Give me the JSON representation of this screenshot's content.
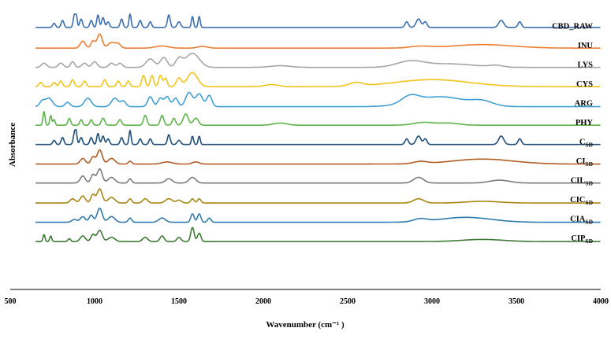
{
  "chart_data": {
    "type": "line",
    "xlabel": "Wavenumber (cm⁻¹ )",
    "ylabel": "Absorbance",
    "xlim": [
      500,
      4000
    ],
    "xticks": [
      "500",
      "1000",
      "1500",
      "2000",
      "2500",
      "3000",
      "3500",
      "4000"
    ],
    "grid": false,
    "series_order": "stacked, top to bottom",
    "series": [
      {
        "name": "CBD_RAW",
        "label_main": "CBD_RAW",
        "label_sub": "",
        "color": "#3a6fb0",
        "x_range": [
          650,
          4000
        ],
        "baseline": 0.2,
        "peaks": [
          [
            760,
            0.3,
            8
          ],
          [
            810,
            0.5,
            8
          ],
          [
            880,
            0.8,
            7
          ],
          [
            890,
            0.9,
            6
          ],
          [
            920,
            0.6,
            8
          ],
          [
            980,
            0.5,
            8
          ],
          [
            1020,
            0.9,
            7
          ],
          [
            1050,
            0.7,
            8
          ],
          [
            1080,
            0.4,
            8
          ],
          [
            1160,
            0.6,
            8
          ],
          [
            1210,
            1.0,
            6
          ],
          [
            1270,
            0.5,
            8
          ],
          [
            1330,
            0.4,
            8
          ],
          [
            1440,
            0.9,
            8
          ],
          [
            1500,
            0.4,
            10
          ],
          [
            1580,
            0.8,
            6
          ],
          [
            1620,
            0.8,
            6
          ],
          [
            2850,
            0.4,
            10
          ],
          [
            2920,
            0.6,
            14
          ],
          [
            2960,
            0.4,
            10
          ],
          [
            3410,
            0.5,
            15
          ],
          [
            3520,
            0.4,
            10
          ]
        ]
      },
      {
        "name": "INU",
        "label_main": "INU",
        "label_sub": "",
        "color": "#ed7d31",
        "x_range": [
          650,
          4000
        ],
        "baseline": 0.1,
        "peaks": [
          [
            930,
            0.5,
            15
          ],
          [
            990,
            0.5,
            12
          ],
          [
            1030,
            1.0,
            15
          ],
          [
            1100,
            0.4,
            20
          ],
          [
            1140,
            0.3,
            15
          ],
          [
            1400,
            0.15,
            40
          ],
          [
            1640,
            0.12,
            30
          ],
          [
            2930,
            0.12,
            60
          ],
          [
            3300,
            0.25,
            180
          ]
        ]
      },
      {
        "name": "LYS",
        "label_main": "LYS",
        "label_sub": "",
        "color": "#a5a5a5",
        "x_range": [
          650,
          4000
        ],
        "baseline": 0.1,
        "peaks": [
          [
            700,
            0.3,
            15
          ],
          [
            800,
            0.3,
            15
          ],
          [
            870,
            0.4,
            12
          ],
          [
            940,
            0.3,
            15
          ],
          [
            1000,
            0.4,
            15
          ],
          [
            1100,
            0.3,
            15
          ],
          [
            1150,
            0.3,
            15
          ],
          [
            1330,
            0.6,
            25
          ],
          [
            1410,
            0.7,
            20
          ],
          [
            1500,
            0.6,
            20
          ],
          [
            1580,
            1.0,
            40
          ],
          [
            2100,
            0.12,
            60
          ],
          [
            2870,
            0.4,
            80
          ],
          [
            3100,
            0.25,
            150
          ],
          [
            3380,
            0.12,
            40
          ]
        ]
      },
      {
        "name": "CYS",
        "label_main": "CYS",
        "label_sub": "",
        "color": "#f2c318",
        "x_range": [
          650,
          4000
        ],
        "baseline": 0.1,
        "peaks": [
          [
            680,
            0.3,
            10
          ],
          [
            760,
            0.3,
            10
          ],
          [
            800,
            0.4,
            10
          ],
          [
            870,
            0.5,
            10
          ],
          [
            940,
            0.4,
            10
          ],
          [
            1060,
            0.5,
            10
          ],
          [
            1140,
            0.4,
            10
          ],
          [
            1200,
            0.4,
            10
          ],
          [
            1290,
            0.8,
            10
          ],
          [
            1340,
            0.8,
            10
          ],
          [
            1390,
            0.8,
            10
          ],
          [
            1420,
            0.6,
            10
          ],
          [
            1500,
            0.6,
            15
          ],
          [
            1580,
            1.0,
            30
          ],
          [
            2050,
            0.15,
            40
          ],
          [
            2550,
            0.25,
            40
          ],
          [
            3000,
            0.5,
            220
          ]
        ]
      },
      {
        "name": "ARG",
        "label_main": "ARG",
        "label_sub": "",
        "color": "#41a0d3",
        "x_range": [
          650,
          4000
        ],
        "baseline": 0.05,
        "peaks": [
          [
            690,
            0.4,
            15
          ],
          [
            730,
            0.6,
            20
          ],
          [
            840,
            0.3,
            15
          ],
          [
            960,
            0.6,
            20
          ],
          [
            1120,
            0.6,
            20
          ],
          [
            1170,
            0.4,
            15
          ],
          [
            1330,
            0.7,
            15
          ],
          [
            1390,
            0.6,
            15
          ],
          [
            1430,
            0.7,
            15
          ],
          [
            1480,
            0.6,
            15
          ],
          [
            1560,
            1.0,
            20
          ],
          [
            1620,
            0.9,
            20
          ],
          [
            1680,
            0.8,
            15
          ],
          [
            2870,
            0.5,
            50
          ],
          [
            3050,
            0.7,
            150
          ],
          [
            3300,
            0.3,
            60
          ]
        ]
      },
      {
        "name": "PHY",
        "label_main": "PHY",
        "label_sub": "",
        "color": "#5db548",
        "x_range": [
          650,
          4000
        ],
        "baseline": 0.1,
        "peaks": [
          [
            700,
            1.0,
            6
          ],
          [
            740,
            0.7,
            6
          ],
          [
            760,
            0.4,
            6
          ],
          [
            850,
            0.5,
            8
          ],
          [
            920,
            0.4,
            8
          ],
          [
            980,
            0.4,
            8
          ],
          [
            1050,
            0.5,
            10
          ],
          [
            1150,
            0.4,
            10
          ],
          [
            1300,
            0.7,
            10
          ],
          [
            1400,
            0.7,
            10
          ],
          [
            1470,
            0.5,
            10
          ],
          [
            1540,
            0.8,
            15
          ],
          [
            1600,
            0.5,
            15
          ],
          [
            2100,
            0.15,
            40
          ],
          [
            2950,
            0.2,
            60
          ],
          [
            3100,
            0.15,
            60
          ]
        ]
      },
      {
        "name": "CSD",
        "label_main": "C",
        "label_sub": "SD",
        "color": "#1f4e79",
        "x_range": [
          650,
          4000
        ],
        "baseline": 0.1,
        "peaks": [
          [
            760,
            0.3,
            8
          ],
          [
            810,
            0.5,
            8
          ],
          [
            880,
            0.7,
            7
          ],
          [
            890,
            0.8,
            6
          ],
          [
            920,
            0.5,
            8
          ],
          [
            980,
            0.5,
            8
          ],
          [
            1020,
            0.8,
            7
          ],
          [
            1050,
            0.6,
            8
          ],
          [
            1080,
            0.4,
            8
          ],
          [
            1160,
            0.5,
            8
          ],
          [
            1210,
            1.0,
            6
          ],
          [
            1270,
            0.4,
            8
          ],
          [
            1330,
            0.4,
            8
          ],
          [
            1440,
            0.7,
            8
          ],
          [
            1500,
            0.3,
            10
          ],
          [
            1580,
            0.6,
            6
          ],
          [
            1620,
            0.6,
            6
          ],
          [
            2850,
            0.4,
            10
          ],
          [
            2920,
            0.6,
            14
          ],
          [
            2960,
            0.4,
            10
          ],
          [
            3410,
            0.6,
            15
          ],
          [
            3520,
            0.4,
            10
          ]
        ]
      },
      {
        "name": "CISD",
        "label_main": "CI",
        "label_sub": "SD",
        "color": "#b05c23",
        "x_range": [
          650,
          4000
        ],
        "baseline": 0.08,
        "peaks": [
          [
            930,
            0.4,
            15
          ],
          [
            990,
            0.5,
            12
          ],
          [
            1030,
            1.0,
            15
          ],
          [
            1100,
            0.4,
            20
          ],
          [
            1210,
            0.2,
            10
          ],
          [
            1430,
            0.15,
            30
          ],
          [
            1600,
            0.15,
            20
          ],
          [
            2930,
            0.15,
            40
          ],
          [
            3300,
            0.35,
            180
          ]
        ]
      },
      {
        "name": "CILSD",
        "label_main": "CIL",
        "label_sub": "SD",
        "color": "#7b7b7b",
        "x_range": [
          650,
          4000
        ],
        "baseline": 0.1,
        "peaks": [
          [
            930,
            0.5,
            15
          ],
          [
            990,
            0.6,
            12
          ],
          [
            1030,
            1.0,
            15
          ],
          [
            1100,
            0.4,
            20
          ],
          [
            1210,
            0.3,
            10
          ],
          [
            1440,
            0.3,
            20
          ],
          [
            1580,
            0.4,
            20
          ],
          [
            2920,
            0.4,
            30
          ],
          [
            3400,
            0.2,
            60
          ]
        ]
      },
      {
        "name": "CICSD",
        "label_main": "CIC",
        "label_sub": "SD",
        "color": "#a98510",
        "x_range": [
          650,
          4000
        ],
        "baseline": 0.05,
        "peaks": [
          [
            870,
            0.3,
            15
          ],
          [
            930,
            0.5,
            15
          ],
          [
            990,
            0.6,
            12
          ],
          [
            1030,
            1.0,
            15
          ],
          [
            1100,
            0.4,
            20
          ],
          [
            1210,
            0.3,
            10
          ],
          [
            1300,
            0.3,
            15
          ],
          [
            1440,
            0.3,
            20
          ],
          [
            1500,
            0.2,
            15
          ],
          [
            1580,
            0.3,
            10
          ],
          [
            1620,
            0.3,
            10
          ],
          [
            2920,
            0.3,
            30
          ],
          [
            3300,
            0.12,
            100
          ]
        ]
      },
      {
        "name": "CIASD",
        "label_main": "CIA",
        "label_sub": "SD",
        "color": "#2f7bab",
        "x_range": [
          650,
          4000
        ],
        "baseline": 0.05,
        "peaks": [
          [
            880,
            0.2,
            15
          ],
          [
            930,
            0.4,
            15
          ],
          [
            980,
            0.5,
            12
          ],
          [
            1030,
            1.0,
            15
          ],
          [
            1100,
            0.4,
            20
          ],
          [
            1210,
            0.3,
            10
          ],
          [
            1400,
            0.3,
            20
          ],
          [
            1580,
            0.6,
            10
          ],
          [
            1620,
            0.6,
            10
          ],
          [
            1680,
            0.3,
            10
          ],
          [
            2930,
            0.2,
            40
          ],
          [
            3200,
            0.35,
            150
          ]
        ]
      },
      {
        "name": "CIPSD",
        "label_main": "CIP",
        "label_sub": "SD",
        "color": "#3e7a36",
        "x_range": [
          650,
          4000
        ],
        "baseline": 0.05,
        "peaks": [
          [
            700,
            0.5,
            6
          ],
          [
            740,
            0.4,
            6
          ],
          [
            850,
            0.2,
            8
          ],
          [
            930,
            0.4,
            15
          ],
          [
            990,
            0.5,
            12
          ],
          [
            1030,
            0.8,
            15
          ],
          [
            1100,
            0.3,
            20
          ],
          [
            1300,
            0.3,
            15
          ],
          [
            1400,
            0.4,
            12
          ],
          [
            1500,
            0.3,
            12
          ],
          [
            1580,
            1.0,
            10
          ],
          [
            1620,
            0.6,
            10
          ],
          [
            3300,
            0.15,
            120
          ]
        ]
      }
    ]
  }
}
